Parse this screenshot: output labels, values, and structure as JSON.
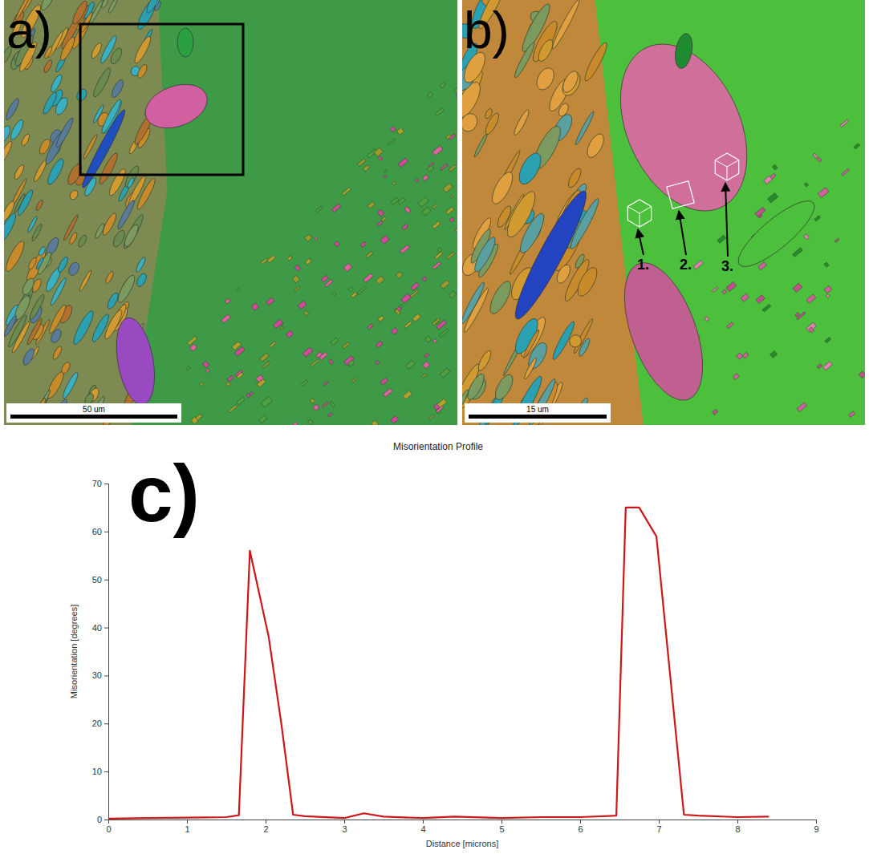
{
  "chart_data": {
    "type": "line",
    "title": "Misorientation Profile",
    "x_label": "Distance [microns]",
    "y_label": "Misorientation [degrees]",
    "annotations": [
      "c)"
    ],
    "x": [
      0,
      0.5,
      1,
      1.5,
      1.66,
      1.8,
      2.04,
      2.2,
      2.35,
      2.5,
      3,
      3.25,
      3.5,
      4,
      4.4,
      5,
      5.5,
      6,
      6.46,
      6.58,
      6.75,
      6.97,
      7.32,
      7.5,
      8,
      8.4
    ],
    "series": [
      {
        "name": "Misorientation",
        "color": "#cc1818",
        "values": [
          0.2,
          0.3,
          0.4,
          0.5,
          0.9,
          56,
          38,
          20,
          1,
          0.7,
          0.3,
          1.3,
          0.6,
          0.3,
          0.6,
          0.3,
          0.5,
          0.5,
          0.8,
          65,
          65,
          59,
          1,
          0.8,
          0.5,
          0.6
        ]
      }
    ],
    "xlim": [
      0,
      9
    ],
    "xticks": [
      0,
      1,
      2,
      3,
      4,
      5,
      6,
      7,
      8,
      9
    ],
    "ylim": [
      0,
      70
    ],
    "yticks": [
      0,
      10,
      20,
      30,
      40,
      50,
      60,
      70
    ],
    "grid": false
  },
  "images": [
    {
      "label": "a)",
      "scale_bar": "50 um"
    },
    {
      "label": "b)",
      "scale_bar": "15 um",
      "markers": [
        "1.",
        "2.",
        "3."
      ]
    }
  ]
}
